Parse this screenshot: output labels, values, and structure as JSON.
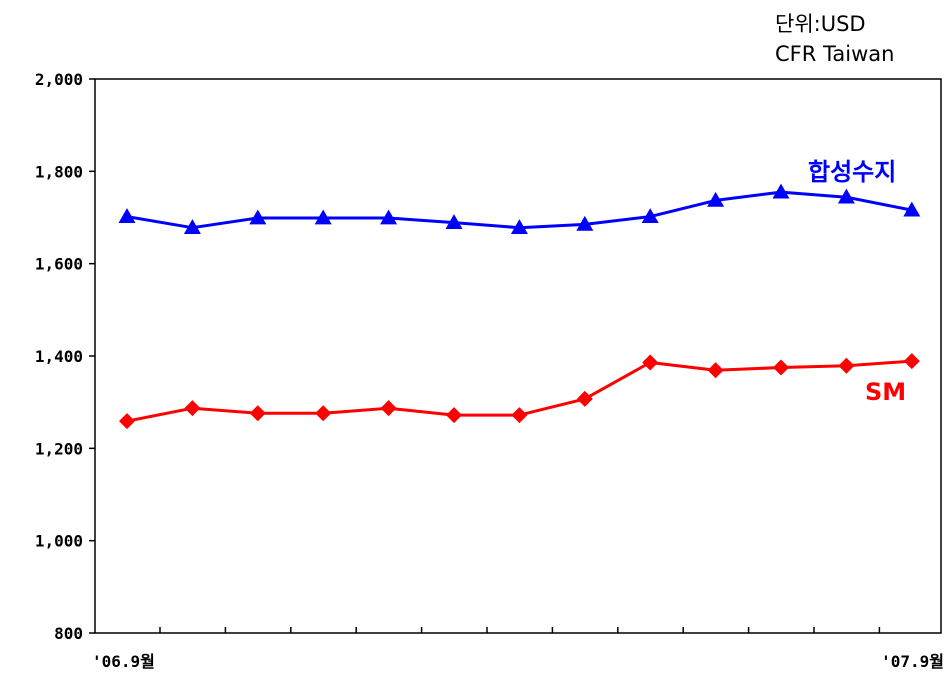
{
  "unit": {
    "line1": "단위:USD",
    "line2": "CFR Taiwan"
  },
  "chart_data": {
    "type": "line",
    "title": "",
    "xlabel": "",
    "ylabel": "",
    "ylim": [
      800,
      2000
    ],
    "yticks": [
      800,
      1000,
      1200,
      1400,
      1600,
      1800,
      2000
    ],
    "ytick_labels": [
      "800",
      "1,000",
      "1,200",
      "1,400",
      "1,600",
      "1,800",
      "2,000"
    ],
    "x": [
      "'06.9월",
      "",
      "",
      "",
      "",
      "",
      "",
      "",
      "",
      "",
      "",
      "",
      "'07.9월"
    ],
    "xtick_labels": [
      {
        "index": 0,
        "label": "'06.9월"
      },
      {
        "index": 12,
        "label": "'07.9월"
      }
    ],
    "grid": false,
    "legend": "inline labels",
    "series": [
      {
        "name": "합성수지",
        "color": "#0000ff",
        "marker": "triangle",
        "values": [
          1702,
          1678,
          1699,
          1699,
          1699,
          1689,
          1678,
          1685,
          1702,
          1737,
          1755,
          1744,
          1716
        ]
      },
      {
        "name": "SM",
        "color": "#ff0000",
        "marker": "diamond",
        "values": [
          1259,
          1287,
          1276,
          1276,
          1287,
          1272,
          1272,
          1307,
          1386,
          1369,
          1375,
          1379,
          1389
        ]
      }
    ]
  }
}
